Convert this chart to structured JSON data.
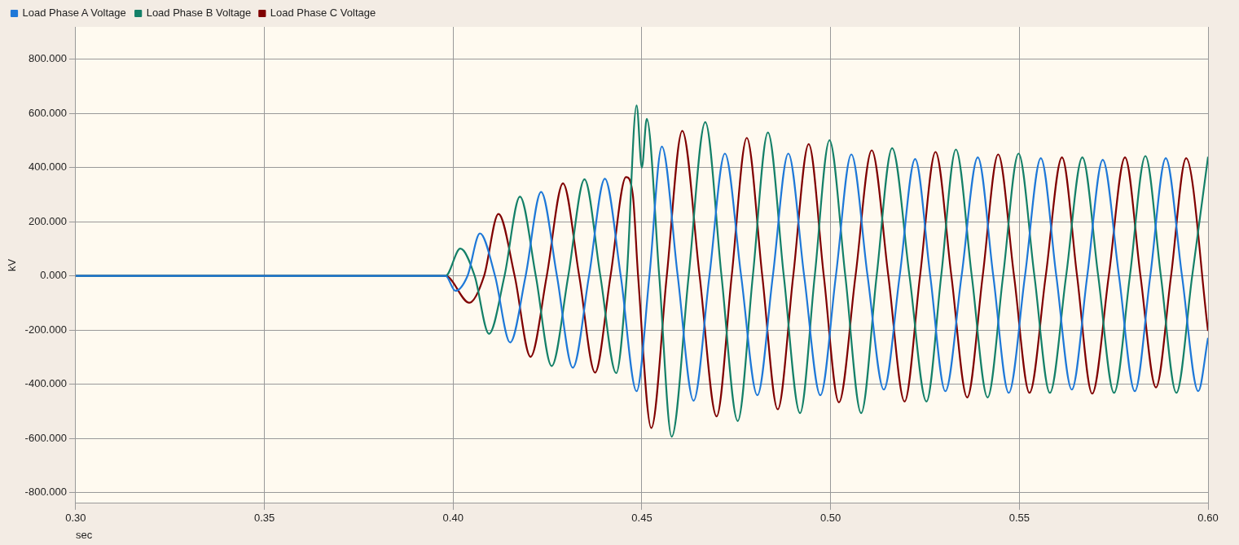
{
  "chart_data": {
    "type": "line",
    "xlabel": "sec",
    "ylabel": "kV",
    "legend": "top",
    "grid": true,
    "marker": "none",
    "line_style": "solid",
    "xlim": [
      0.3,
      0.6
    ],
    "xticks": [
      {
        "value": 0.3,
        "label": "0.30"
      },
      {
        "value": 0.35,
        "label": "0.35"
      },
      {
        "value": 0.4,
        "label": "0.40"
      },
      {
        "value": 0.45,
        "label": "0.45"
      },
      {
        "value": 0.5,
        "label": "0.50"
      },
      {
        "value": 0.55,
        "label": "0.55"
      },
      {
        "value": 0.6,
        "label": "0.60"
      }
    ],
    "ylim": [
      -840,
      920
    ],
    "yticks": [
      {
        "value": -800,
        "label": "-800.000"
      },
      {
        "value": -600,
        "label": "-600.000"
      },
      {
        "value": -400,
        "label": "-400.000"
      },
      {
        "value": -200,
        "label": "-200.000"
      },
      {
        "value": 0,
        "label": "0.000"
      },
      {
        "value": 200,
        "label": "200.000"
      },
      {
        "value": 400,
        "label": "400.000"
      },
      {
        "value": 600,
        "label": "600.000"
      },
      {
        "value": 800,
        "label": "800.000"
      }
    ],
    "series": [
      {
        "name": "Load Phase A Voltage",
        "color": "#1e78d8",
        "x": [
          0.3,
          0.398,
          0.4006,
          0.4038,
          0.4071,
          0.4111,
          0.4151,
          0.4192,
          0.4233,
          0.4275,
          0.4317,
          0.436,
          0.4402,
          0.4444,
          0.4486,
          0.452,
          0.4553,
          0.4595,
          0.4637,
          0.4679,
          0.472,
          0.4763,
          0.4806,
          0.4847,
          0.4888,
          0.493,
          0.4973,
          0.5014,
          0.5055,
          0.5098,
          0.5141,
          0.5183,
          0.5224,
          0.5264,
          0.5304,
          0.5347,
          0.539,
          0.5431,
          0.5472,
          0.5515,
          0.5557,
          0.5598,
          0.5639,
          0.568,
          0.5721,
          0.5764,
          0.5806,
          0.5847,
          0.5888,
          0.5931,
          0.5974,
          0.6
        ],
        "values": [
          0,
          0,
          -55,
          0,
          157,
          0,
          -246,
          0,
          310,
          0,
          -339,
          0,
          359,
          0,
          -426,
          0,
          478,
          0,
          -461,
          0,
          452,
          0,
          -441,
          0,
          452,
          0,
          -441,
          0,
          449,
          0,
          -420,
          0,
          432,
          0,
          -426,
          0,
          438,
          0,
          -432,
          0,
          435,
          0,
          -420,
          0,
          429,
          0,
          -426,
          0,
          435,
          0,
          -426,
          -229
        ]
      },
      {
        "name": "Load Phase B Voltage",
        "color": "#148068",
        "x": [
          0.3,
          0.398,
          0.4019,
          0.4057,
          0.4095,
          0.4136,
          0.4177,
          0.4219,
          0.4261,
          0.4305,
          0.4348,
          0.439,
          0.4432,
          0.446,
          0.4486,
          0.45,
          0.4513,
          0.4546,
          0.4579,
          0.4624,
          0.4668,
          0.4711,
          0.4754,
          0.4794,
          0.4834,
          0.4876,
          0.4919,
          0.4958,
          0.4997,
          0.5039,
          0.5081,
          0.5122,
          0.5163,
          0.5209,
          0.5254,
          0.5293,
          0.5332,
          0.5374,
          0.5416,
          0.5457,
          0.5498,
          0.554,
          0.5581,
          0.5624,
          0.5667,
          0.5709,
          0.5751,
          0.5793,
          0.5834,
          0.5875,
          0.5916,
          0.5958,
          0.6
        ],
        "values": [
          0,
          0,
          101,
          0,
          -214,
          0,
          293,
          0,
          -333,
          0,
          357,
          0,
          -359,
          0,
          630,
          400,
          580,
          0,
          -594,
          0,
          568,
          0,
          -536,
          0,
          530,
          0,
          -507,
          0,
          501,
          0,
          -507,
          0,
          472,
          0,
          -464,
          0,
          467,
          0,
          -449,
          0,
          452,
          0,
          -432,
          0,
          438,
          0,
          -432,
          0,
          443,
          0,
          -432,
          0,
          440
        ]
      },
      {
        "name": "Load Phase C Voltage",
        "color": "#800000",
        "x": [
          0.3,
          0.398,
          0.4043,
          0.4082,
          0.412,
          0.4163,
          0.4205,
          0.4248,
          0.4291,
          0.4334,
          0.4376,
          0.4417,
          0.4458,
          0.4476,
          0.449,
          0.4525,
          0.4566,
          0.4607,
          0.4653,
          0.4698,
          0.4738,
          0.4778,
          0.4819,
          0.486,
          0.4901,
          0.4942,
          0.4982,
          0.5022,
          0.5066,
          0.5109,
          0.5153,
          0.5196,
          0.5237,
          0.5278,
          0.532,
          0.5362,
          0.5403,
          0.5444,
          0.5486,
          0.5527,
          0.557,
          0.5613,
          0.5653,
          0.5693,
          0.5737,
          0.578,
          0.5821,
          0.5862,
          0.5902,
          0.5942,
          0.6
        ],
        "values": [
          0,
          0,
          -99,
          0,
          229,
          0,
          -299,
          0,
          342,
          0,
          -357,
          0,
          365,
          300,
          0,
          -562,
          0,
          536,
          0,
          -519,
          0,
          510,
          0,
          -493,
          0,
          487,
          0,
          -467,
          0,
          464,
          0,
          -464,
          0,
          458,
          0,
          -449,
          0,
          449,
          0,
          -432,
          0,
          438,
          0,
          -435,
          0,
          438,
          0,
          -412,
          0,
          435,
          -203
        ]
      }
    ]
  }
}
